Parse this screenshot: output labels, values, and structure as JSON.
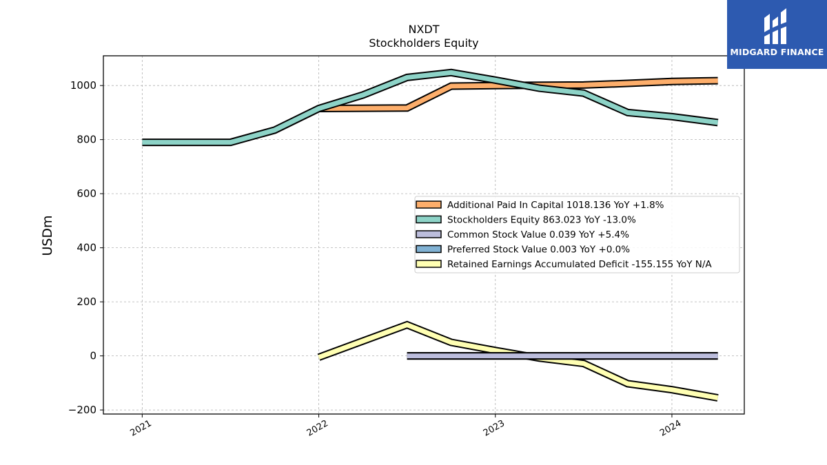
{
  "chart_data": {
    "type": "line",
    "title": "NXDT",
    "subtitle": "Stockholders  Equity",
    "ylabel": "USDm",
    "xlabel": "",
    "ylim": [
      -215,
      1110
    ],
    "xlim": [
      2020.78,
      2024.41
    ],
    "yticks": [
      -200,
      0,
      200,
      400,
      600,
      800,
      1000
    ],
    "ytick_labels": [
      "−200",
      "0",
      "200",
      "400",
      "600",
      "800",
      "1000"
    ],
    "xticks": [
      2021,
      2022,
      2023,
      2024
    ],
    "xtick_labels": [
      "2021",
      "2022",
      "2023",
      "2024"
    ],
    "grid": true,
    "legend_position": "center-right",
    "series": [
      {
        "name": "Additional Paid In Capital  1018.136 YoY +1.8%",
        "color": "#fdae6b",
        "x": [
          2022.0,
          2022.5,
          2022.75,
          2023.0,
          2023.5,
          2023.75,
          2024.0,
          2024.26
        ],
        "values": [
          915,
          917,
          998,
          1000,
          1002,
          1008,
          1015,
          1018
        ]
      },
      {
        "name": "Stockholders Equity  863.023 YoY -13.0%",
        "color": "#8dd3c7",
        "x": [
          2021.0,
          2021.5,
          2021.75,
          2022.0,
          2022.25,
          2022.5,
          2022.75,
          2023.0,
          2023.25,
          2023.5,
          2023.75,
          2024.0,
          2024.26
        ],
        "values": [
          790,
          790,
          835,
          915,
          965,
          1030,
          1048,
          1020,
          990,
          972,
          900,
          885,
          863
        ]
      },
      {
        "name": "Common Stock Value  0.039 YoY +5.4%",
        "color": "#bcbddc",
        "x": [
          2022.5,
          2024.26
        ],
        "values": [
          0.039,
          0.039
        ]
      },
      {
        "name": "Preferred Stock Value  0.003 YoY +0.0%",
        "color": "#80b1d3",
        "x": [
          2022.5,
          2024.26
        ],
        "values": [
          0.003,
          0.003
        ]
      },
      {
        "name": "Retained Earnings Accumulated Deficit  -155.155 YoY N/A",
        "color": "#ffffb3",
        "x": [
          2022.0,
          2022.5,
          2022.75,
          2023.0,
          2023.25,
          2023.5,
          2023.75,
          2024.0,
          2024.26
        ],
        "values": [
          -5,
          115,
          50,
          20,
          -8,
          -28,
          -103,
          -125,
          -155
        ]
      }
    ]
  },
  "logo": {
    "text": "MIDGARD FINANCE"
  }
}
